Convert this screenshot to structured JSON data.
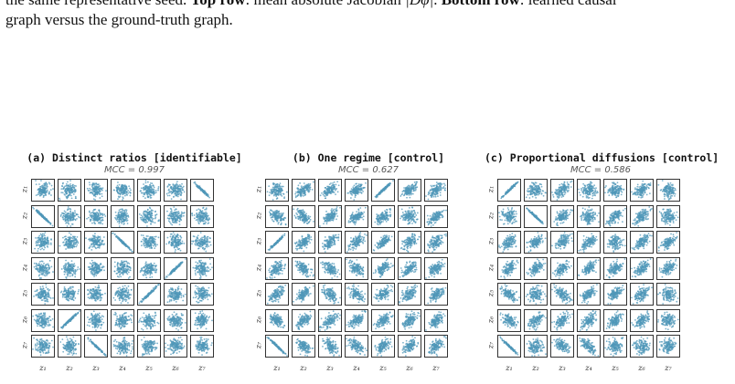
{
  "caption": {
    "line1_pre": "the same representative seed. ",
    "top_row_label": "Top row",
    "line1_mid": ": mean absolute Jacobian ",
    "jacobian": "|Dφ|",
    "line1_post": ". ",
    "bottom_row_label": "Bottom row",
    "line1_end": ": learned causal",
    "line2": "graph versus the ground-truth graph."
  },
  "variables": [
    "z1",
    "z2",
    "z3",
    "z4",
    "z5",
    "z6",
    "z7"
  ],
  "colors": {
    "points": "#4f97b8",
    "frame": "#333333"
  },
  "panels": [
    {
      "title": "(a) Distinct ratios  [identifiable]",
      "mcc": "MCC = 0.997",
      "cells": [
        [
          "b",
          "b",
          "b",
          "b",
          "b",
          "b",
          "-"
        ],
        [
          "-",
          "b",
          "b",
          "b",
          "b",
          "b",
          "b"
        ],
        [
          "b",
          "b",
          "b",
          "-",
          "b",
          "b",
          "b"
        ],
        [
          "b",
          "b",
          "b",
          "b",
          "b",
          "+",
          "b"
        ],
        [
          "b",
          "b",
          "b",
          "b",
          "+",
          "b",
          "b"
        ],
        [
          "b",
          "+",
          "b",
          "b",
          "b",
          "b",
          "b"
        ],
        [
          "b",
          "b",
          "-",
          "b",
          "b",
          "b",
          "b"
        ]
      ]
    },
    {
      "title": "(b) One regime  [control]",
      "mcc": "MCC = 0.627",
      "cells": [
        [
          "b",
          "w+",
          "w+",
          "w+",
          "+",
          "w+",
          "w+"
        ],
        [
          "w-",
          "w-",
          "w+",
          "w+",
          "w+",
          "b",
          "w+"
        ],
        [
          "+",
          "w+",
          "w+",
          "w+",
          "w+",
          "w+",
          "w+"
        ],
        [
          "w+",
          "w-",
          "w-",
          "w-",
          "w+",
          "w+",
          "w+"
        ],
        [
          "w+",
          "w+",
          "w-",
          "w-",
          "w+",
          "w+",
          "w+"
        ],
        [
          "w-",
          "w+",
          "w+",
          "w+",
          "w+",
          "w+",
          "w+"
        ],
        [
          "-",
          "w-",
          "w-",
          "w-",
          "w+",
          "w+",
          "w+"
        ]
      ]
    },
    {
      "title": "(c) Proportional diffusions  [control]",
      "mcc": "MCC = 0.586",
      "cells": [
        [
          "+",
          "b",
          "w+",
          "b",
          "b",
          "w+",
          "b"
        ],
        [
          "b",
          "-",
          "w+",
          "b",
          "w+",
          "w+",
          "b"
        ],
        [
          "w+",
          "w+",
          "w+",
          "w+",
          "b",
          "w+",
          "w+"
        ],
        [
          "w+",
          "w+",
          "w+",
          "w+",
          "w+",
          "w+",
          "w+"
        ],
        [
          "w-",
          "b",
          "w-",
          "w+",
          "w+",
          "w+",
          "b"
        ],
        [
          "w-",
          "w+",
          "w+",
          "w+",
          "w+",
          "w+",
          "b"
        ],
        [
          "-",
          "b",
          "w-",
          "w-",
          "b",
          "b",
          "b"
        ]
      ]
    }
  ]
}
